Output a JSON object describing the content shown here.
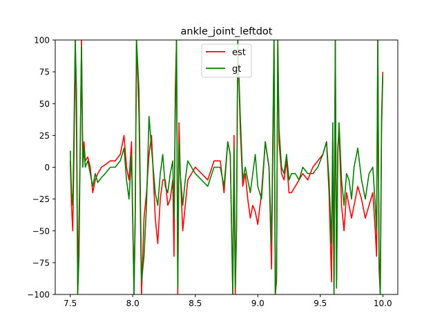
{
  "chart_data": {
    "type": "line",
    "title": "ankle_joint_leftdot",
    "xlabel": "",
    "ylabel": "",
    "xlim": [
      7.38,
      10.12
    ],
    "ylim": [
      -100,
      100
    ],
    "xticks": [
      7.5,
      8.0,
      8.5,
      9.0,
      9.5,
      10.0
    ],
    "xtick_labels": [
      "7.5",
      "8.0",
      "8.5",
      "9.0",
      "9.5",
      "10.0"
    ],
    "yticks": [
      -100,
      -75,
      -50,
      -25,
      0,
      25,
      50,
      75,
      100
    ],
    "ytick_labels": [
      "−100",
      "−75",
      "−50",
      "−25",
      "0",
      "25",
      "50",
      "75",
      "100"
    ],
    "grid": false,
    "legend_position": "top-center",
    "series": [
      {
        "name": "est",
        "color": "#ff0000",
        "x": [
          7.5,
          7.51,
          7.52,
          7.53,
          7.54,
          7.55,
          7.56,
          7.57,
          7.58,
          7.59,
          7.6,
          7.61,
          7.62,
          7.64,
          7.66,
          7.68,
          7.7,
          7.72,
          7.75,
          7.78,
          7.82,
          7.86,
          7.9,
          7.93,
          7.95,
          7.97,
          7.99,
          8.01,
          8.02,
          8.03,
          8.05,
          8.07,
          8.09,
          8.11,
          8.13,
          8.15,
          8.18,
          8.2,
          8.22,
          8.24,
          8.26,
          8.28,
          8.3,
          8.32,
          8.33,
          8.34,
          8.35,
          8.36,
          8.37,
          8.38,
          8.4,
          8.42,
          8.44,
          8.47,
          8.5,
          8.55,
          8.6,
          8.65,
          8.7,
          8.73,
          8.76,
          8.78,
          8.8,
          8.81,
          8.82,
          8.83,
          8.84,
          8.86,
          8.88,
          8.9,
          8.92,
          8.94,
          8.96,
          8.98,
          9.0,
          9.03,
          9.06,
          9.09,
          9.11,
          9.13,
          9.14,
          9.15,
          9.16,
          9.17,
          9.19,
          9.21,
          9.23,
          9.25,
          9.27,
          9.3,
          9.33,
          9.36,
          9.4,
          9.44,
          9.48,
          9.52,
          9.55,
          9.57,
          9.59,
          9.6,
          9.61,
          9.62,
          9.63,
          9.64,
          9.65,
          9.67,
          9.69,
          9.71,
          9.73,
          9.75,
          9.77,
          9.8,
          9.83,
          9.86,
          9.89,
          9.92,
          9.94,
          9.95,
          9.96,
          9.97,
          9.98,
          9.99,
          10.0
        ],
        "y": [
          5,
          -30,
          -50,
          10,
          100,
          30,
          -100,
          -40,
          15,
          100,
          10,
          20,
          5,
          8,
          0,
          -20,
          -10,
          -5,
          0,
          2,
          5,
          5,
          10,
          25,
          0,
          -10,
          20,
          -100,
          -30,
          100,
          40,
          -100,
          -40,
          -20,
          10,
          25,
          -40,
          -60,
          -25,
          -10,
          -10,
          -30,
          -25,
          -10,
          -70,
          60,
          100,
          -100,
          35,
          -5,
          -50,
          -30,
          -10,
          -5,
          0,
          -5,
          -10,
          5,
          5,
          -20,
          20,
          10,
          -100,
          25,
          -100,
          -50,
          100,
          30,
          -15,
          -5,
          -25,
          -40,
          -30,
          -35,
          -45,
          -20,
          20,
          0,
          -80,
          100,
          -100,
          -90,
          100,
          20,
          -5,
          -10,
          5,
          -20,
          -20,
          -15,
          -10,
          -5,
          -10,
          0,
          5,
          10,
          20,
          -20,
          -90,
          20,
          -100,
          100,
          -90,
          15,
          30,
          -30,
          -50,
          -20,
          -30,
          -40,
          -30,
          -15,
          -25,
          -40,
          -30,
          -20,
          -50,
          -70,
          100,
          -80,
          -100,
          40,
          75
        ]
      },
      {
        "name": "gt",
        "color": "#008000",
        "x": [
          7.5,
          7.51,
          7.52,
          7.53,
          7.54,
          7.55,
          7.56,
          7.57,
          7.58,
          7.59,
          7.6,
          7.61,
          7.62,
          7.64,
          7.66,
          7.68,
          7.7,
          7.72,
          7.75,
          7.78,
          7.82,
          7.86,
          7.9,
          7.93,
          7.95,
          7.97,
          7.99,
          8.01,
          8.02,
          8.03,
          8.05,
          8.07,
          8.09,
          8.11,
          8.13,
          8.15,
          8.18,
          8.2,
          8.22,
          8.24,
          8.26,
          8.28,
          8.3,
          8.32,
          8.33,
          8.34,
          8.35,
          8.36,
          8.37,
          8.38,
          8.4,
          8.42,
          8.44,
          8.47,
          8.5,
          8.55,
          8.6,
          8.65,
          8.7,
          8.73,
          8.76,
          8.78,
          8.8,
          8.81,
          8.82,
          8.83,
          8.84,
          8.86,
          8.88,
          8.9,
          8.92,
          8.94,
          8.96,
          8.98,
          9.0,
          9.03,
          9.06,
          9.09,
          9.11,
          9.13,
          9.14,
          9.15,
          9.16,
          9.17,
          9.19,
          9.21,
          9.23,
          9.25,
          9.27,
          9.3,
          9.33,
          9.36,
          9.4,
          9.44,
          9.48,
          9.52,
          9.55,
          9.57,
          9.59,
          9.6,
          9.61,
          9.62,
          9.63,
          9.64,
          9.65,
          9.67,
          9.69,
          9.71,
          9.73,
          9.75,
          9.77,
          9.8,
          9.83,
          9.86,
          9.89,
          9.92,
          9.94,
          9.95,
          9.96,
          9.97,
          9.98,
          9.99,
          10.0
        ],
        "y": [
          13,
          -20,
          -30,
          30,
          100,
          60,
          -100,
          -70,
          20,
          95,
          0,
          15,
          0,
          5,
          -5,
          -15,
          -5,
          -12,
          -8,
          -5,
          0,
          0,
          5,
          15,
          -10,
          -25,
          10,
          -100,
          -40,
          100,
          60,
          -90,
          -70,
          -30,
          40,
          15,
          -20,
          -30,
          -5,
          10,
          -15,
          -20,
          -5,
          5,
          -40,
          40,
          100,
          -95,
          20,
          -5,
          -30,
          -10,
          5,
          0,
          -5,
          -10,
          -15,
          0,
          0,
          -15,
          20,
          10,
          -100,
          15,
          -95,
          -45,
          100,
          40,
          -10,
          0,
          -10,
          -20,
          -5,
          10,
          -15,
          -25,
          20,
          0,
          -60,
          100,
          -100,
          -85,
          100,
          30,
          0,
          -5,
          10,
          -10,
          -5,
          -5,
          -10,
          0,
          -5,
          -5,
          0,
          10,
          20,
          -10,
          -60,
          35,
          -100,
          100,
          -95,
          10,
          35,
          -10,
          -30,
          -5,
          -10,
          -25,
          0,
          15,
          -10,
          -25,
          -5,
          0,
          -30,
          -50,
          100,
          -70,
          -100,
          30,
          72
        ]
      }
    ]
  }
}
